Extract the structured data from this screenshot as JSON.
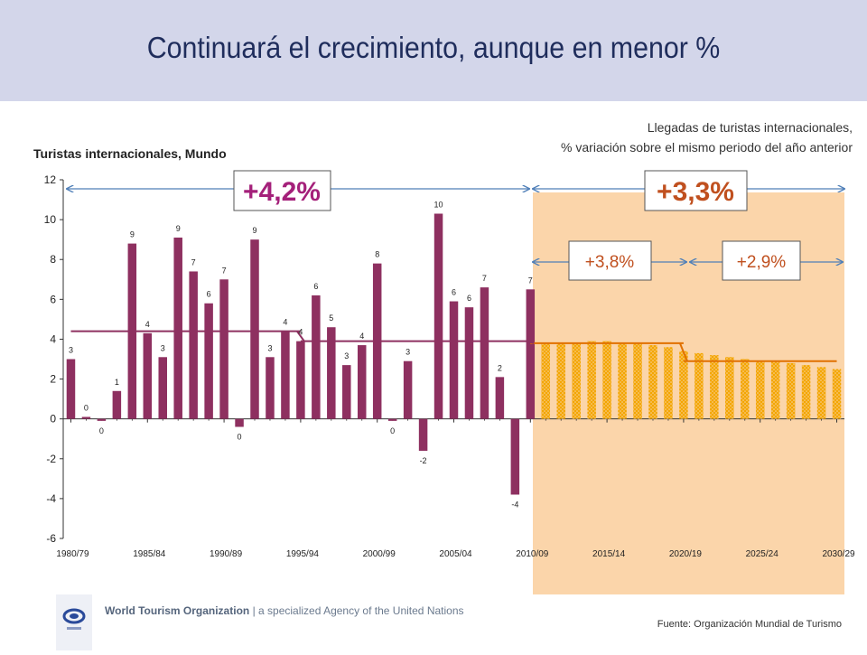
{
  "header": {
    "title": "Continuará el crecimiento, aunque en menor %"
  },
  "subtitle": {
    "line1": "Llegadas de turistas internacionales,",
    "line2": "% variación sobre el mismo periodo del año anterior"
  },
  "footer": {
    "org_name": "World Tourism Organization",
    "org_tagline": "| a specialized Agency of the United Nations",
    "source": "Fuente: Organización Mundial de Turismo"
  },
  "colors": {
    "historical_bar": "#8e3060",
    "forecast_bar": "#f3a600",
    "forecast_bg": "#fbd5aa",
    "avg_historical": "#8e3060",
    "avg_forecast": "#e07000",
    "callout_text_hist": "#a4207a",
    "arrow": "#4f7fb8"
  },
  "chart_data": {
    "type": "bar",
    "title": "Turistas internacionales, Mundo",
    "ylim": [
      -6,
      12
    ],
    "yticks": [
      "12",
      "10",
      "8",
      "6",
      "4",
      "2",
      "0",
      "-2",
      "-4",
      "-6"
    ],
    "xtick_labels": [
      "1980/79",
      "1985/84",
      "1990/89",
      "1995/94",
      "2000/99",
      "2005/04",
      "2010/09",
      "2015/14",
      "2020/19",
      "2025/24",
      "2030/29"
    ],
    "historical": {
      "years": [
        1980,
        1981,
        1982,
        1983,
        1984,
        1985,
        1986,
        1987,
        1988,
        1989,
        1990,
        1991,
        1992,
        1993,
        1994,
        1995,
        1996,
        1997,
        1998,
        1999,
        2000,
        2001,
        2002,
        2003,
        2004,
        2005,
        2006,
        2007,
        2008,
        2009,
        2010
      ],
      "values": [
        3.0,
        0.1,
        -0.1,
        1.4,
        8.8,
        4.3,
        3.1,
        9.1,
        7.4,
        5.8,
        7.0,
        -0.4,
        9.0,
        3.1,
        4.4,
        3.9,
        6.2,
        4.6,
        2.7,
        3.7,
        7.8,
        -0.1,
        2.9,
        -1.6,
        10.3,
        5.9,
        5.6,
        6.6,
        2.1,
        -3.8,
        6.5
      ],
      "labels": [
        "3",
        "0",
        "0",
        "1",
        "9",
        "4",
        "3",
        "9",
        "7",
        "6",
        "7",
        "0",
        "9",
        "3",
        "4",
        "4",
        "6",
        "5",
        "3",
        "4",
        "8",
        "0",
        "3",
        "-2",
        "10",
        "6",
        "6",
        "7",
        "2",
        "-4",
        "7"
      ]
    },
    "forecast": {
      "years": [
        2011,
        2012,
        2013,
        2014,
        2015,
        2016,
        2017,
        2018,
        2019,
        2020,
        2021,
        2022,
        2023,
        2024,
        2025,
        2026,
        2027,
        2028,
        2029,
        2030
      ],
      "values": [
        3.8,
        3.8,
        3.8,
        3.9,
        3.9,
        3.8,
        3.8,
        3.7,
        3.6,
        3.4,
        3.3,
        3.2,
        3.1,
        3.0,
        2.9,
        2.9,
        2.8,
        2.7,
        2.6,
        2.5
      ]
    },
    "averages": [
      {
        "from": 1980,
        "to": 1995,
        "value": 4.4
      },
      {
        "from": 1995,
        "to": 2010,
        "value": 3.9
      },
      {
        "from": 2010,
        "to": 2020,
        "value": 3.8
      },
      {
        "from": 2020,
        "to": 2030,
        "value": 2.9
      }
    ],
    "callouts": {
      "hist_total": "+4,2%",
      "forecast_total": "+3,3%",
      "forecast_first": "+3,8%",
      "forecast_second": "+2,9%"
    }
  }
}
